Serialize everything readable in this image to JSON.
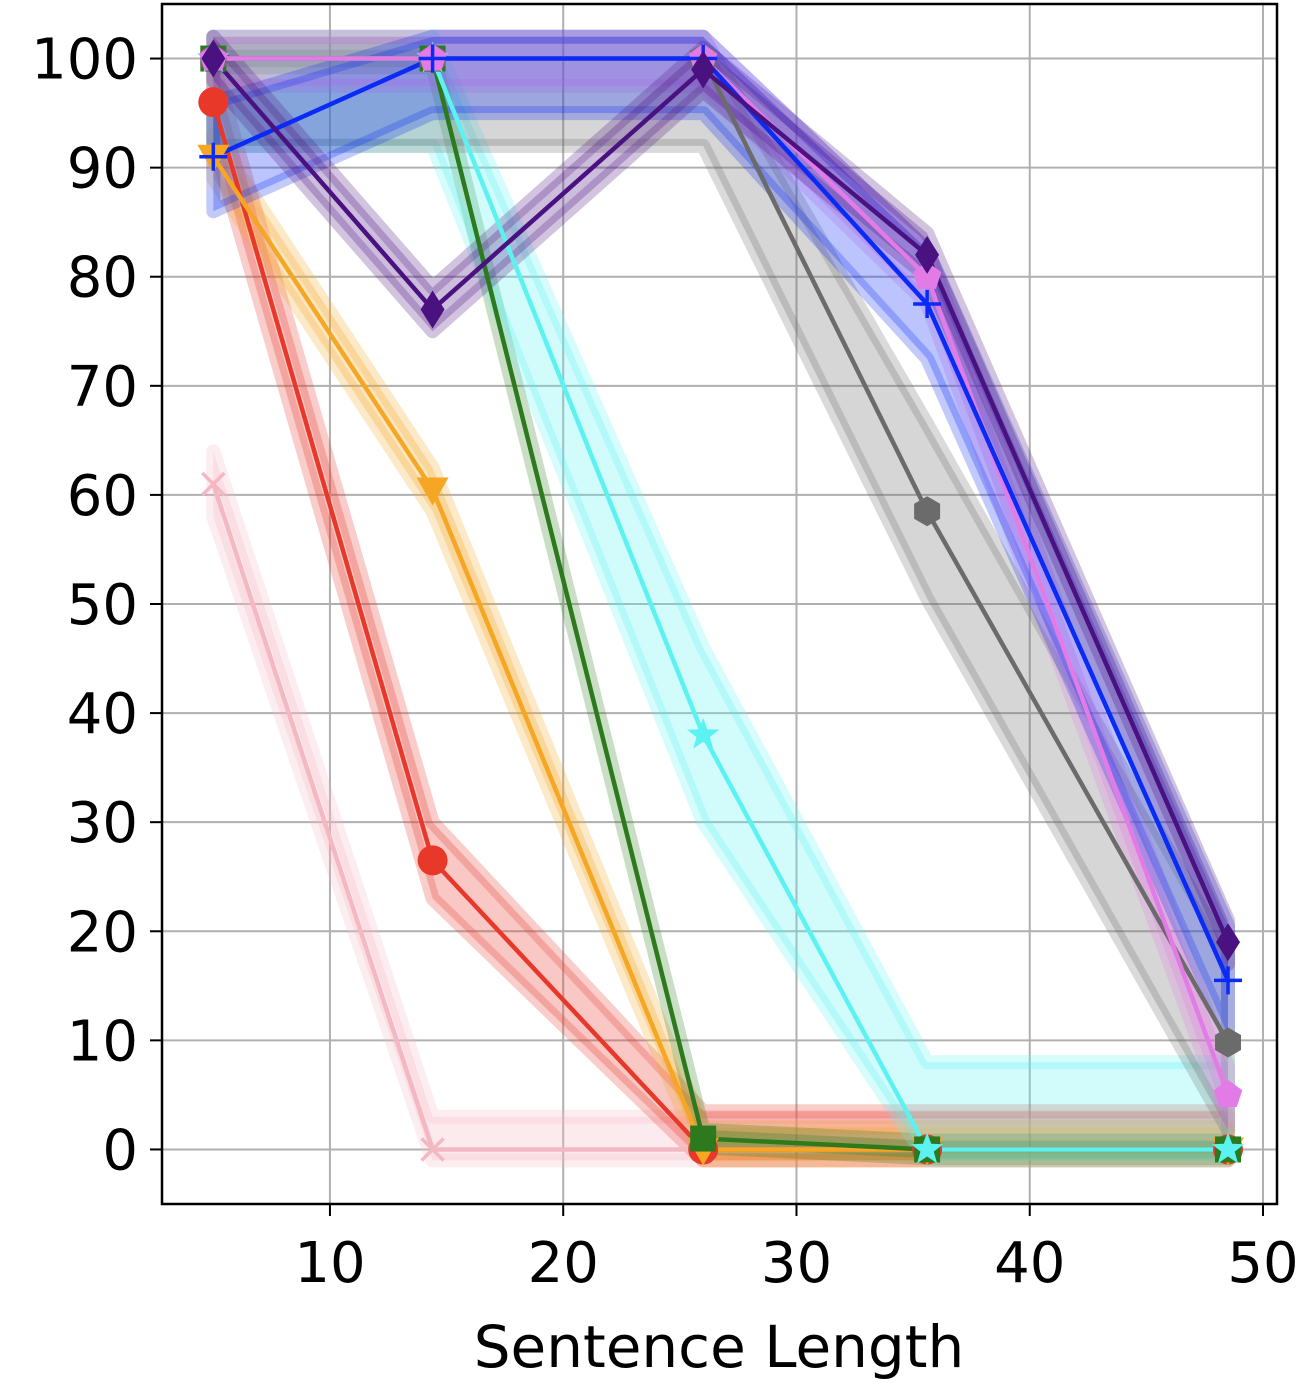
{
  "chart_data": {
    "type": "line",
    "title": "",
    "xlabel": "Sentence Length",
    "ylabel": "",
    "xlim": [
      2.8,
      50.6
    ],
    "ylim": [
      -5,
      105
    ],
    "xticks": [
      10,
      20,
      30,
      40,
      50
    ],
    "yticks": [
      0,
      10,
      20,
      30,
      40,
      50,
      60,
      70,
      80,
      90,
      100
    ],
    "x": [
      5.0,
      14.4,
      26.0,
      35.6,
      48.5
    ],
    "grid": true,
    "legend": "none",
    "series": [
      {
        "color": "#f4b8c2",
        "marker": "x",
        "values": [
          61,
          0,
          0,
          0,
          0
        ],
        "band": 3
      },
      {
        "color": "#e8382a",
        "marker": "circle",
        "values": [
          96,
          26.5,
          0,
          0,
          0
        ],
        "band": 3.5
      },
      {
        "color": "#f5a623",
        "marker": "triangle-down",
        "values": [
          91,
          60.5,
          0,
          0,
          0
        ],
        "band": 2
      },
      {
        "color": "#2c7a1d",
        "marker": "square",
        "values": [
          100,
          100,
          1,
          0,
          0
        ],
        "band": 0.8
      },
      {
        "color": "#5cf2f2",
        "marker": "star",
        "values": [
          100,
          100,
          38,
          0,
          0
        ],
        "band": 8
      },
      {
        "color": "#6b6b6b",
        "marker": "hexagon",
        "values": [
          100,
          100,
          100,
          58.5,
          9.8
        ],
        "band": 8
      },
      {
        "color": "#e27be5",
        "marker": "pentagon",
        "values": [
          100,
          100,
          100,
          80,
          5
        ],
        "band": 2.5
      },
      {
        "color": "#0a2af5",
        "marker": "plus",
        "values": [
          91,
          100,
          100,
          77.5,
          15.5
        ],
        "band": 5
      },
      {
        "color": "#4a1280",
        "marker": "diamond",
        "values": [
          100,
          77,
          99,
          82,
          19
        ],
        "band": 2
      }
    ]
  }
}
